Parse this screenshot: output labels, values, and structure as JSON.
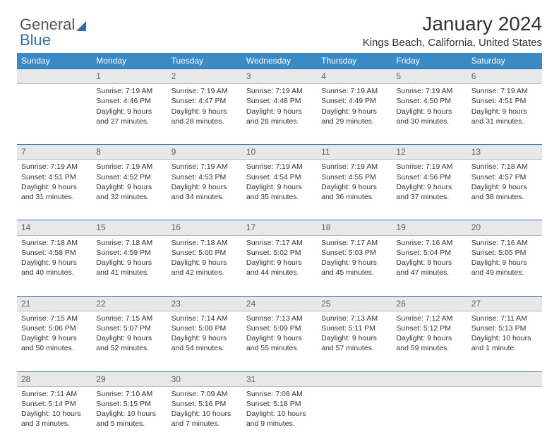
{
  "logo": {
    "part1": "General",
    "part2": "Blue"
  },
  "title": "January 2024",
  "location": "Kings Beach, California, United States",
  "header_bg": "#3a8ac6",
  "header_fg": "#ffffff",
  "rule_color": "#2f6fa7",
  "daynum_bg": "#e8e8e8",
  "daynum_fg": "#606060",
  "body_bg": "#ffffff",
  "text_color": "#333333",
  "font_family": "Arial, Helvetica, sans-serif",
  "title_fontsize": 28,
  "location_fontsize": 15,
  "header_fontsize": 12,
  "cell_fontsize": 10.5,
  "columns": [
    "Sunday",
    "Monday",
    "Tuesday",
    "Wednesday",
    "Thursday",
    "Friday",
    "Saturday"
  ],
  "weeks": [
    {
      "nums": [
        "",
        "1",
        "2",
        "3",
        "4",
        "5",
        "6"
      ],
      "cells": [
        null,
        {
          "sunrise": "Sunrise: 7:19 AM",
          "sunset": "Sunset: 4:46 PM",
          "day1": "Daylight: 9 hours",
          "day2": "and 27 minutes."
        },
        {
          "sunrise": "Sunrise: 7:19 AM",
          "sunset": "Sunset: 4:47 PM",
          "day1": "Daylight: 9 hours",
          "day2": "and 28 minutes."
        },
        {
          "sunrise": "Sunrise: 7:19 AM",
          "sunset": "Sunset: 4:48 PM",
          "day1": "Daylight: 9 hours",
          "day2": "and 28 minutes."
        },
        {
          "sunrise": "Sunrise: 7:19 AM",
          "sunset": "Sunset: 4:49 PM",
          "day1": "Daylight: 9 hours",
          "day2": "and 29 minutes."
        },
        {
          "sunrise": "Sunrise: 7:19 AM",
          "sunset": "Sunset: 4:50 PM",
          "day1": "Daylight: 9 hours",
          "day2": "and 30 minutes."
        },
        {
          "sunrise": "Sunrise: 7:19 AM",
          "sunset": "Sunset: 4:51 PM",
          "day1": "Daylight: 9 hours",
          "day2": "and 31 minutes."
        }
      ]
    },
    {
      "nums": [
        "7",
        "8",
        "9",
        "10",
        "11",
        "12",
        "13"
      ],
      "cells": [
        {
          "sunrise": "Sunrise: 7:19 AM",
          "sunset": "Sunset: 4:51 PM",
          "day1": "Daylight: 9 hours",
          "day2": "and 31 minutes."
        },
        {
          "sunrise": "Sunrise: 7:19 AM",
          "sunset": "Sunset: 4:52 PM",
          "day1": "Daylight: 9 hours",
          "day2": "and 32 minutes."
        },
        {
          "sunrise": "Sunrise: 7:19 AM",
          "sunset": "Sunset: 4:53 PM",
          "day1": "Daylight: 9 hours",
          "day2": "and 34 minutes."
        },
        {
          "sunrise": "Sunrise: 7:19 AM",
          "sunset": "Sunset: 4:54 PM",
          "day1": "Daylight: 9 hours",
          "day2": "and 35 minutes."
        },
        {
          "sunrise": "Sunrise: 7:19 AM",
          "sunset": "Sunset: 4:55 PM",
          "day1": "Daylight: 9 hours",
          "day2": "and 36 minutes."
        },
        {
          "sunrise": "Sunrise: 7:19 AM",
          "sunset": "Sunset: 4:56 PM",
          "day1": "Daylight: 9 hours",
          "day2": "and 37 minutes."
        },
        {
          "sunrise": "Sunrise: 7:18 AM",
          "sunset": "Sunset: 4:57 PM",
          "day1": "Daylight: 9 hours",
          "day2": "and 38 minutes."
        }
      ]
    },
    {
      "nums": [
        "14",
        "15",
        "16",
        "17",
        "18",
        "19",
        "20"
      ],
      "cells": [
        {
          "sunrise": "Sunrise: 7:18 AM",
          "sunset": "Sunset: 4:58 PM",
          "day1": "Daylight: 9 hours",
          "day2": "and 40 minutes."
        },
        {
          "sunrise": "Sunrise: 7:18 AM",
          "sunset": "Sunset: 4:59 PM",
          "day1": "Daylight: 9 hours",
          "day2": "and 41 minutes."
        },
        {
          "sunrise": "Sunrise: 7:18 AM",
          "sunset": "Sunset: 5:00 PM",
          "day1": "Daylight: 9 hours",
          "day2": "and 42 minutes."
        },
        {
          "sunrise": "Sunrise: 7:17 AM",
          "sunset": "Sunset: 5:02 PM",
          "day1": "Daylight: 9 hours",
          "day2": "and 44 minutes."
        },
        {
          "sunrise": "Sunrise: 7:17 AM",
          "sunset": "Sunset: 5:03 PM",
          "day1": "Daylight: 9 hours",
          "day2": "and 45 minutes."
        },
        {
          "sunrise": "Sunrise: 7:16 AM",
          "sunset": "Sunset: 5:04 PM",
          "day1": "Daylight: 9 hours",
          "day2": "and 47 minutes."
        },
        {
          "sunrise": "Sunrise: 7:16 AM",
          "sunset": "Sunset: 5:05 PM",
          "day1": "Daylight: 9 hours",
          "day2": "and 49 minutes."
        }
      ]
    },
    {
      "nums": [
        "21",
        "22",
        "23",
        "24",
        "25",
        "26",
        "27"
      ],
      "cells": [
        {
          "sunrise": "Sunrise: 7:15 AM",
          "sunset": "Sunset: 5:06 PM",
          "day1": "Daylight: 9 hours",
          "day2": "and 50 minutes."
        },
        {
          "sunrise": "Sunrise: 7:15 AM",
          "sunset": "Sunset: 5:07 PM",
          "day1": "Daylight: 9 hours",
          "day2": "and 52 minutes."
        },
        {
          "sunrise": "Sunrise: 7:14 AM",
          "sunset": "Sunset: 5:08 PM",
          "day1": "Daylight: 9 hours",
          "day2": "and 54 minutes."
        },
        {
          "sunrise": "Sunrise: 7:13 AM",
          "sunset": "Sunset: 5:09 PM",
          "day1": "Daylight: 9 hours",
          "day2": "and 55 minutes."
        },
        {
          "sunrise": "Sunrise: 7:13 AM",
          "sunset": "Sunset: 5:11 PM",
          "day1": "Daylight: 9 hours",
          "day2": "and 57 minutes."
        },
        {
          "sunrise": "Sunrise: 7:12 AM",
          "sunset": "Sunset: 5:12 PM",
          "day1": "Daylight: 9 hours",
          "day2": "and 59 minutes."
        },
        {
          "sunrise": "Sunrise: 7:11 AM",
          "sunset": "Sunset: 5:13 PM",
          "day1": "Daylight: 10 hours",
          "day2": "and 1 minute."
        }
      ]
    },
    {
      "nums": [
        "28",
        "29",
        "30",
        "31",
        "",
        "",
        ""
      ],
      "cells": [
        {
          "sunrise": "Sunrise: 7:11 AM",
          "sunset": "Sunset: 5:14 PM",
          "day1": "Daylight: 10 hours",
          "day2": "and 3 minutes."
        },
        {
          "sunrise": "Sunrise: 7:10 AM",
          "sunset": "Sunset: 5:15 PM",
          "day1": "Daylight: 10 hours",
          "day2": "and 5 minutes."
        },
        {
          "sunrise": "Sunrise: 7:09 AM",
          "sunset": "Sunset: 5:16 PM",
          "day1": "Daylight: 10 hours",
          "day2": "and 7 minutes."
        },
        {
          "sunrise": "Sunrise: 7:08 AM",
          "sunset": "Sunset: 5:18 PM",
          "day1": "Daylight: 10 hours",
          "day2": "and 9 minutes."
        },
        null,
        null,
        null
      ]
    }
  ]
}
